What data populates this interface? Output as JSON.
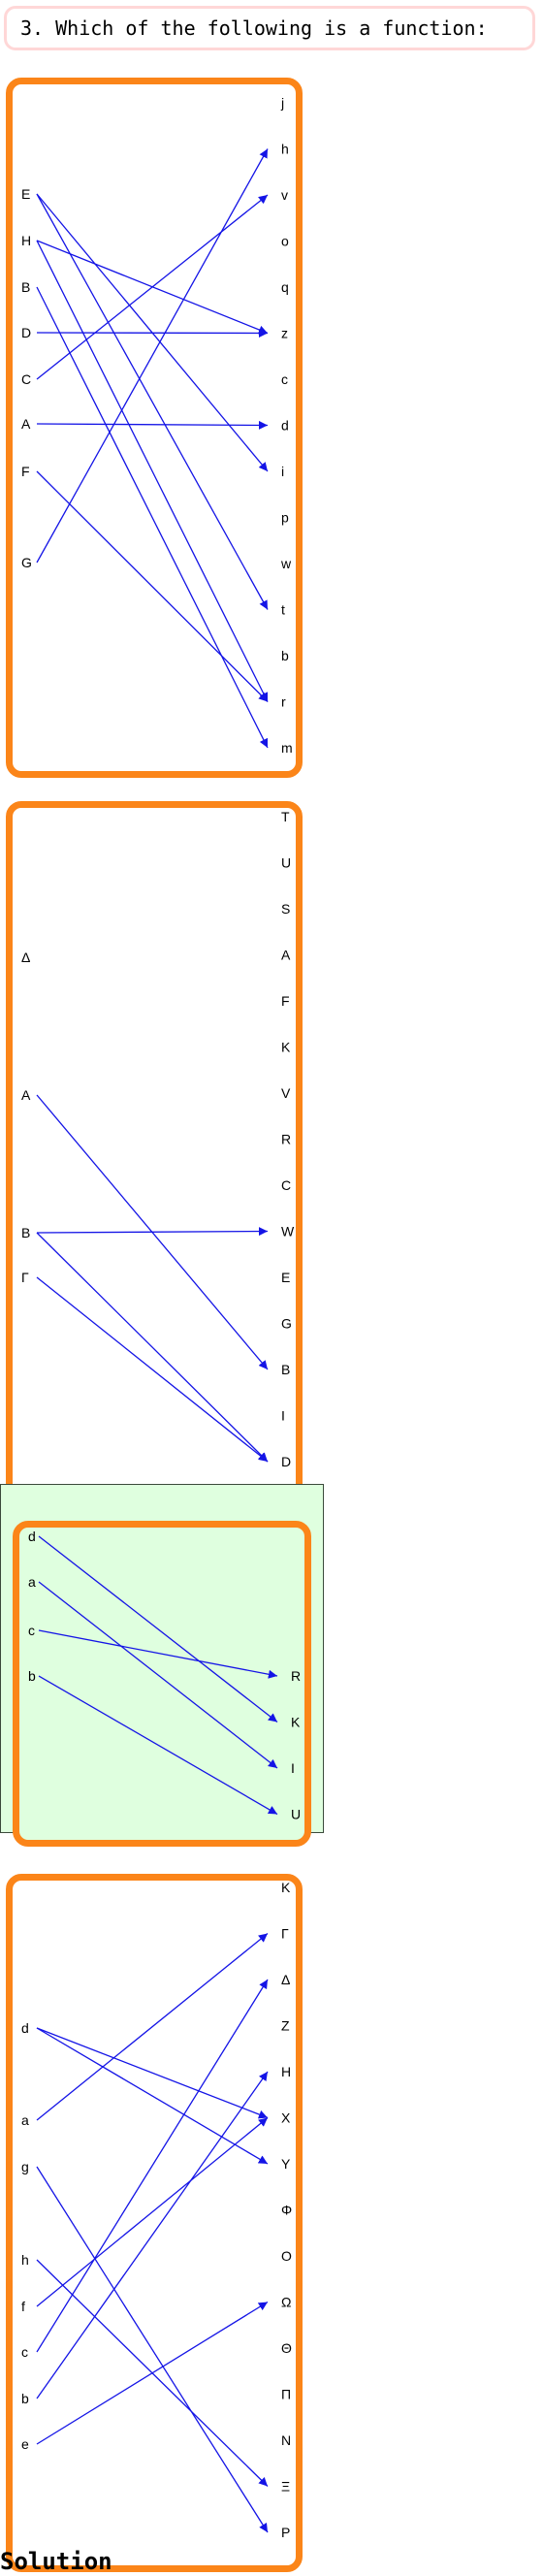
{
  "question": "3. Which of the following is a function:",
  "options": [
    {
      "domain": [
        "E",
        "H",
        "B",
        "D",
        "C",
        "A",
        "F",
        "G"
      ],
      "codomain": [
        "j",
        "h",
        "v",
        "o",
        "q",
        "z",
        "c",
        "d",
        "i",
        "p",
        "w",
        "t",
        "b",
        "r",
        "m"
      ],
      "arrows": [
        [
          "E",
          "i"
        ],
        [
          "E",
          "t"
        ],
        [
          "H",
          "z"
        ],
        [
          "H",
          "r"
        ],
        [
          "B",
          "m"
        ],
        [
          "D",
          "z"
        ],
        [
          "C",
          "v"
        ],
        [
          "A",
          "d"
        ],
        [
          "F",
          "r"
        ],
        [
          "G",
          "h"
        ]
      ],
      "highlighted": false
    },
    {
      "domain": [
        "Δ",
        "A",
        "B",
        "Γ"
      ],
      "codomain": [
        "T",
        "U",
        "S",
        "A",
        "F",
        "K",
        "V",
        "R",
        "C",
        "W",
        "E",
        "G",
        "B",
        "I",
        "D"
      ],
      "arrows": [
        [
          "A",
          "B"
        ],
        [
          "B",
          "W"
        ],
        [
          "B",
          "D"
        ],
        [
          "Γ",
          "D"
        ]
      ],
      "highlighted": false
    },
    {
      "domain": [
        "d",
        "a",
        "c",
        "b"
      ],
      "codomain": [
        "R",
        "K",
        "I",
        "U"
      ],
      "arrows": [
        [
          "d",
          "K"
        ],
        [
          "a",
          "I"
        ],
        [
          "c",
          "R"
        ],
        [
          "b",
          "U"
        ]
      ],
      "highlighted": true
    },
    {
      "domain": [
        "d",
        "a",
        "g",
        "h",
        "f",
        "c",
        "b",
        "e"
      ],
      "codomain": [
        "K",
        "Γ",
        "Δ",
        "Z",
        "H",
        "X",
        "Y",
        "Φ",
        "O",
        "Ω",
        "Θ",
        "Π",
        "N",
        "Ξ",
        "P"
      ],
      "arrows": [
        [
          "d",
          "X"
        ],
        [
          "d",
          "Y"
        ],
        [
          "a",
          "Γ"
        ],
        [
          "g",
          "P"
        ],
        [
          "h",
          "Ξ"
        ],
        [
          "f",
          "X"
        ],
        [
          "c",
          "Δ"
        ],
        [
          "b",
          "H"
        ],
        [
          "e",
          "Ω"
        ]
      ],
      "highlighted": false
    }
  ],
  "solution_heading": "Solution",
  "colors": {
    "arrow": "#1414e6",
    "panel_border": "#fb8519",
    "correct_bg": "#dfffdf",
    "question_border": "#ffd7d7"
  }
}
